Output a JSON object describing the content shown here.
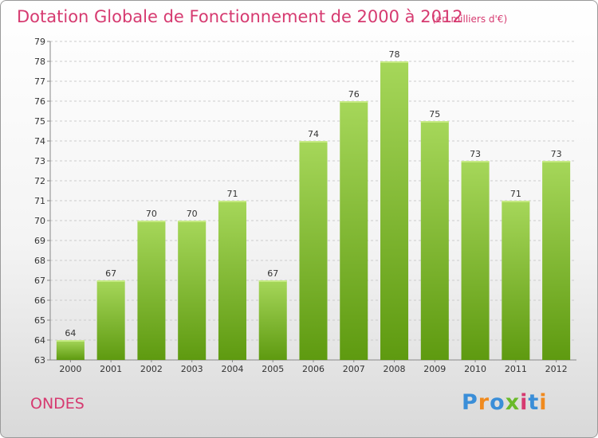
{
  "header": {
    "title": "Dotation Globale de Fonctionnement de 2000 à 2012",
    "unit": "(en milliers d'€)"
  },
  "commune": "ONDES",
  "logo": {
    "text": "Proxiti",
    "colors": [
      "#3a8ed8",
      "#f08a1e",
      "#3a8ed8",
      "#6aba2a",
      "#d63a70",
      "#3a8ed8",
      "#f08a1e"
    ]
  },
  "colors": {
    "bar_top": "#a6d75a",
    "bar_bottom": "#5e9a10",
    "grid": "#cccccc",
    "axis": "#888888",
    "accent": "#d63a70"
  },
  "chart_data": {
    "type": "bar",
    "title": "Dotation Globale de Fonctionnement de 2000 à 2012",
    "subtitle": "(en milliers d'€)",
    "categories": [
      "2000",
      "2001",
      "2002",
      "2003",
      "2004",
      "2005",
      "2006",
      "2007",
      "2008",
      "2009",
      "2010",
      "2011",
      "2012"
    ],
    "values": [
      64,
      67,
      70,
      70,
      71,
      67,
      74,
      76,
      78,
      75,
      73,
      71,
      73
    ],
    "xlabel": "",
    "ylabel": "",
    "ylim": [
      63,
      79
    ],
    "yticks": [
      63,
      64,
      65,
      66,
      67,
      68,
      69,
      70,
      71,
      72,
      73,
      74,
      75,
      76,
      77,
      78,
      79
    ],
    "grid": true,
    "legend": "none"
  }
}
